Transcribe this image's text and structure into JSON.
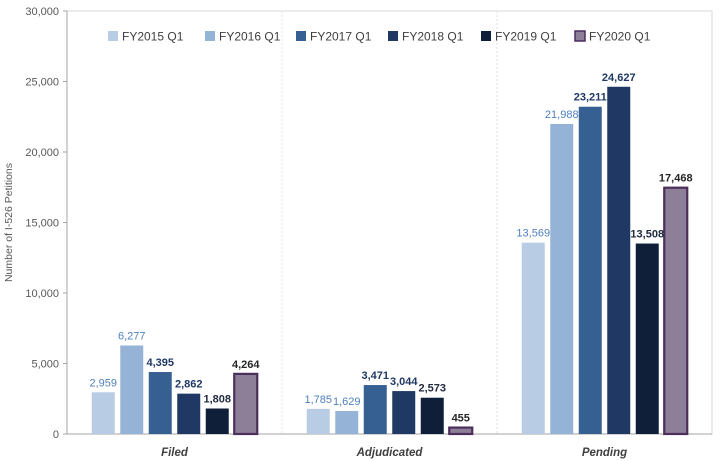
{
  "chart_data": {
    "type": "bar",
    "title": "",
    "xlabel": "",
    "ylabel": "Number of I-526 Petitions",
    "ylim": [
      0,
      30000
    ],
    "yticks": [
      "0",
      "5,000",
      "10,000",
      "15,000",
      "20,000",
      "25,000",
      "30,000"
    ],
    "categories": [
      "Filed",
      "Adjudicated",
      "Pending"
    ],
    "legend_position": "top",
    "grid": false,
    "series": [
      {
        "name": "FY2015 Q1",
        "color": "#b8cce4",
        "values": [
          2959,
          1785,
          13569
        ],
        "labels": [
          "2,959",
          "1,785",
          "13,569"
        ],
        "label_color": "#4f81bd",
        "label_bold": false
      },
      {
        "name": "FY2016 Q1",
        "color": "#95b3d7",
        "values": [
          6277,
          1629,
          21988
        ],
        "labels": [
          "6,277",
          "1,629",
          "21,988"
        ],
        "label_color": "#4f81bd",
        "label_bold": false
      },
      {
        "name": "FY2017 Q1",
        "color": "#376092",
        "values": [
          4395,
          3471,
          23211
        ],
        "labels": [
          "4,395",
          "3,471",
          "23,211"
        ],
        "label_color": "#1f3864",
        "label_bold": true
      },
      {
        "name": "FY2018 Q1",
        "color": "#1f3864",
        "values": [
          2862,
          3044,
          24627
        ],
        "labels": [
          "2,862",
          "3,044",
          "24,627"
        ],
        "label_color": "#1f3864",
        "label_bold": true
      },
      {
        "name": "FY2019 Q1",
        "color": "#0f1f3a",
        "values": [
          1808,
          2573,
          13508
        ],
        "labels": [
          "1,808",
          "2,573",
          "13,508"
        ],
        "label_color": "#1f2a3c",
        "label_bold": true
      },
      {
        "name": "FY2020 Q1",
        "color": "#8e7f98",
        "stroke": "#4b2e5a",
        "values": [
          4264,
          455,
          17468
        ],
        "labels": [
          "4,264",
          "455",
          "17,468"
        ],
        "label_color": "#262626",
        "label_bold": true,
        "label_large": true
      }
    ]
  }
}
